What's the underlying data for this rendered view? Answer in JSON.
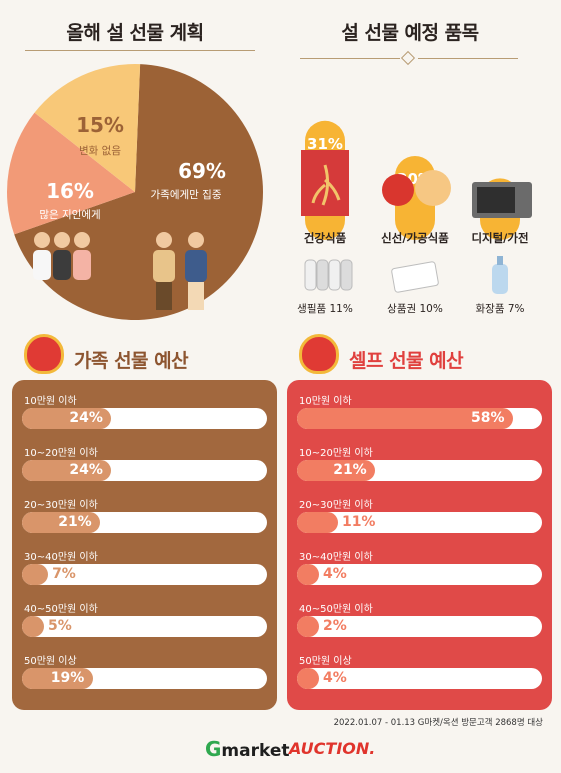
{
  "titles": {
    "plan": "올해 설 선물 계획",
    "items": "설 선물 예정 품목",
    "family_budget": "가족 선물 예산",
    "self_budget": "셀프 선물 예산"
  },
  "chart_data": [
    {
      "type": "pie",
      "title": "올해 설 선물 계획",
      "slices": [
        {
          "label": "가족에게만 집중",
          "value": 69,
          "display": "69%",
          "color": "#9c6236"
        },
        {
          "label": "많은 지인에게",
          "value": 16,
          "display": "16%",
          "color": "#f29a77"
        },
        {
          "label": "변화 없음",
          "value": 15,
          "display": "15%",
          "color": "#f8c878"
        }
      ]
    },
    {
      "type": "bar",
      "title": "설 선물 예정 품목",
      "categories": [
        "건강식품",
        "신선/가공식품",
        "디지털/가전"
      ],
      "values": [
        31,
        20,
        13
      ],
      "value_labels": [
        "31%",
        "20%",
        "13%"
      ],
      "extra_items": [
        {
          "label": "생필품 11%",
          "icon": "daily-goods-icon"
        },
        {
          "label": "상품권 10%",
          "icon": "gift-card-icon"
        },
        {
          "label": "화장품 7%",
          "icon": "cosmetics-icon"
        }
      ]
    },
    {
      "type": "bar",
      "title": "가족 선물 예산",
      "categories": [
        "10만원 이하",
        "10~20만원 이하",
        "20~30만원 이하",
        "30~40만원 이하",
        "40~50만원 이하",
        "50만원 이상"
      ],
      "values": [
        24,
        24,
        21,
        7,
        5,
        19
      ],
      "value_labels": [
        "24%",
        "24%",
        "21%",
        "7%",
        "5%",
        "19%"
      ],
      "panel_color": "#a2683e",
      "bar_color": "#d9956a",
      "title_color": "#8d5530"
    },
    {
      "type": "bar",
      "title": "셀프 선물 예산",
      "categories": [
        "10만원 이하",
        "10~20만원 이하",
        "20~30만원 이하",
        "30~40만원 이하",
        "40~50만원 이하",
        "50만원 이상"
      ],
      "values": [
        58,
        21,
        11,
        4,
        2,
        4
      ],
      "value_labels": [
        "58%",
        "21%",
        "11%",
        "4%",
        "2%",
        "4%"
      ],
      "panel_color": "#e04a48",
      "bar_color": "#f27d62",
      "title_color": "#e0403e"
    }
  ],
  "footnote": "2022.01.07 - 01.13 G마켓/옥션 방문고객 2868명 대상",
  "logos": {
    "gmarket_g": "G",
    "gmarket_rest": "market",
    "auction": "AUCTION."
  }
}
